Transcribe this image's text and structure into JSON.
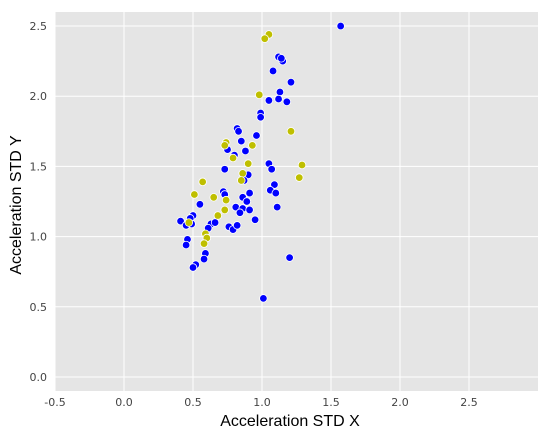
{
  "chart_data": {
    "type": "scatter",
    "title": "",
    "xlabel": "Acceleration STD X",
    "ylabel": "Acceleration STD Y",
    "xlim": [
      -0.5,
      3.0
    ],
    "ylim": [
      -0.1,
      2.6
    ],
    "x_ticks": [
      "-0.5",
      "0.0",
      "0.5",
      "1.0",
      "1.5",
      "2.0",
      "2.5"
    ],
    "x_tick_values": [
      -0.5,
      0.0,
      0.5,
      1.0,
      1.5,
      2.0,
      2.5
    ],
    "y_ticks": [
      "0.0",
      "0.5",
      "1.0",
      "1.5",
      "2.0",
      "2.5"
    ],
    "y_tick_values": [
      0.0,
      0.5,
      1.0,
      1.5,
      2.0,
      2.5
    ],
    "grid": true,
    "background_color": "#e5e5e5",
    "series": [
      {
        "color": "#0000ff",
        "points": [
          {
            "x": 1.57,
            "y": 2.5
          },
          {
            "x": 1.12,
            "y": 2.28
          },
          {
            "x": 1.15,
            "y": 2.25
          },
          {
            "x": 1.14,
            "y": 2.27
          },
          {
            "x": 1.08,
            "y": 2.18
          },
          {
            "x": 1.21,
            "y": 2.1
          },
          {
            "x": 1.13,
            "y": 2.03
          },
          {
            "x": 1.18,
            "y": 1.96
          },
          {
            "x": 1.12,
            "y": 1.98
          },
          {
            "x": 1.05,
            "y": 1.97
          },
          {
            "x": 0.99,
            "y": 1.88
          },
          {
            "x": 0.99,
            "y": 1.85
          },
          {
            "x": 0.82,
            "y": 1.77
          },
          {
            "x": 0.83,
            "y": 1.75
          },
          {
            "x": 0.96,
            "y": 1.72
          },
          {
            "x": 0.85,
            "y": 1.68
          },
          {
            "x": 0.75,
            "y": 1.62
          },
          {
            "x": 0.88,
            "y": 1.61
          },
          {
            "x": 0.8,
            "y": 1.58
          },
          {
            "x": 1.05,
            "y": 1.52
          },
          {
            "x": 1.07,
            "y": 1.48
          },
          {
            "x": 0.73,
            "y": 1.48
          },
          {
            "x": 0.9,
            "y": 1.44
          },
          {
            "x": 0.87,
            "y": 1.4
          },
          {
            "x": 1.09,
            "y": 1.37
          },
          {
            "x": 1.06,
            "y": 1.33
          },
          {
            "x": 1.1,
            "y": 1.31
          },
          {
            "x": 0.72,
            "y": 1.32
          },
          {
            "x": 0.73,
            "y": 1.3
          },
          {
            "x": 0.86,
            "y": 1.28
          },
          {
            "x": 0.91,
            "y": 1.31
          },
          {
            "x": 0.89,
            "y": 1.25
          },
          {
            "x": 0.55,
            "y": 1.23
          },
          {
            "x": 0.81,
            "y": 1.21
          },
          {
            "x": 0.86,
            "y": 1.2
          },
          {
            "x": 0.84,
            "y": 1.17
          },
          {
            "x": 0.91,
            "y": 1.19
          },
          {
            "x": 1.11,
            "y": 1.21
          },
          {
            "x": 0.95,
            "y": 1.12
          },
          {
            "x": 0.5,
            "y": 1.15
          },
          {
            "x": 0.48,
            "y": 1.13
          },
          {
            "x": 0.41,
            "y": 1.11
          },
          {
            "x": 0.45,
            "y": 1.08
          },
          {
            "x": 0.49,
            "y": 1.09
          },
          {
            "x": 0.63,
            "y": 1.09
          },
          {
            "x": 0.66,
            "y": 1.1
          },
          {
            "x": 0.61,
            "y": 1.06
          },
          {
            "x": 0.76,
            "y": 1.07
          },
          {
            "x": 0.79,
            "y": 1.05
          },
          {
            "x": 0.82,
            "y": 1.08
          },
          {
            "x": 0.46,
            "y": 0.98
          },
          {
            "x": 0.45,
            "y": 0.94
          },
          {
            "x": 0.59,
            "y": 0.88
          },
          {
            "x": 0.58,
            "y": 0.84
          },
          {
            "x": 0.52,
            "y": 0.8
          },
          {
            "x": 0.5,
            "y": 0.78
          },
          {
            "x": 1.2,
            "y": 0.85
          },
          {
            "x": 1.01,
            "y": 0.56
          }
        ]
      },
      {
        "color": "#bfbf00",
        "points": [
          {
            "x": 1.05,
            "y": 2.44
          },
          {
            "x": 1.02,
            "y": 2.41
          },
          {
            "x": 0.98,
            "y": 2.01
          },
          {
            "x": 1.21,
            "y": 1.75
          },
          {
            "x": 0.74,
            "y": 1.67
          },
          {
            "x": 0.73,
            "y": 1.65
          },
          {
            "x": 0.93,
            "y": 1.65
          },
          {
            "x": 0.79,
            "y": 1.56
          },
          {
            "x": 0.9,
            "y": 1.52
          },
          {
            "x": 1.29,
            "y": 1.51
          },
          {
            "x": 0.86,
            "y": 1.45
          },
          {
            "x": 0.85,
            "y": 1.4
          },
          {
            "x": 1.27,
            "y": 1.42
          },
          {
            "x": 0.57,
            "y": 1.39
          },
          {
            "x": 0.51,
            "y": 1.3
          },
          {
            "x": 0.65,
            "y": 1.28
          },
          {
            "x": 0.74,
            "y": 1.26
          },
          {
            "x": 0.73,
            "y": 1.19
          },
          {
            "x": 0.68,
            "y": 1.15
          },
          {
            "x": 0.47,
            "y": 1.1
          },
          {
            "x": 0.59,
            "y": 1.02
          },
          {
            "x": 0.6,
            "y": 0.99
          },
          {
            "x": 0.58,
            "y": 0.95
          }
        ]
      }
    ]
  }
}
